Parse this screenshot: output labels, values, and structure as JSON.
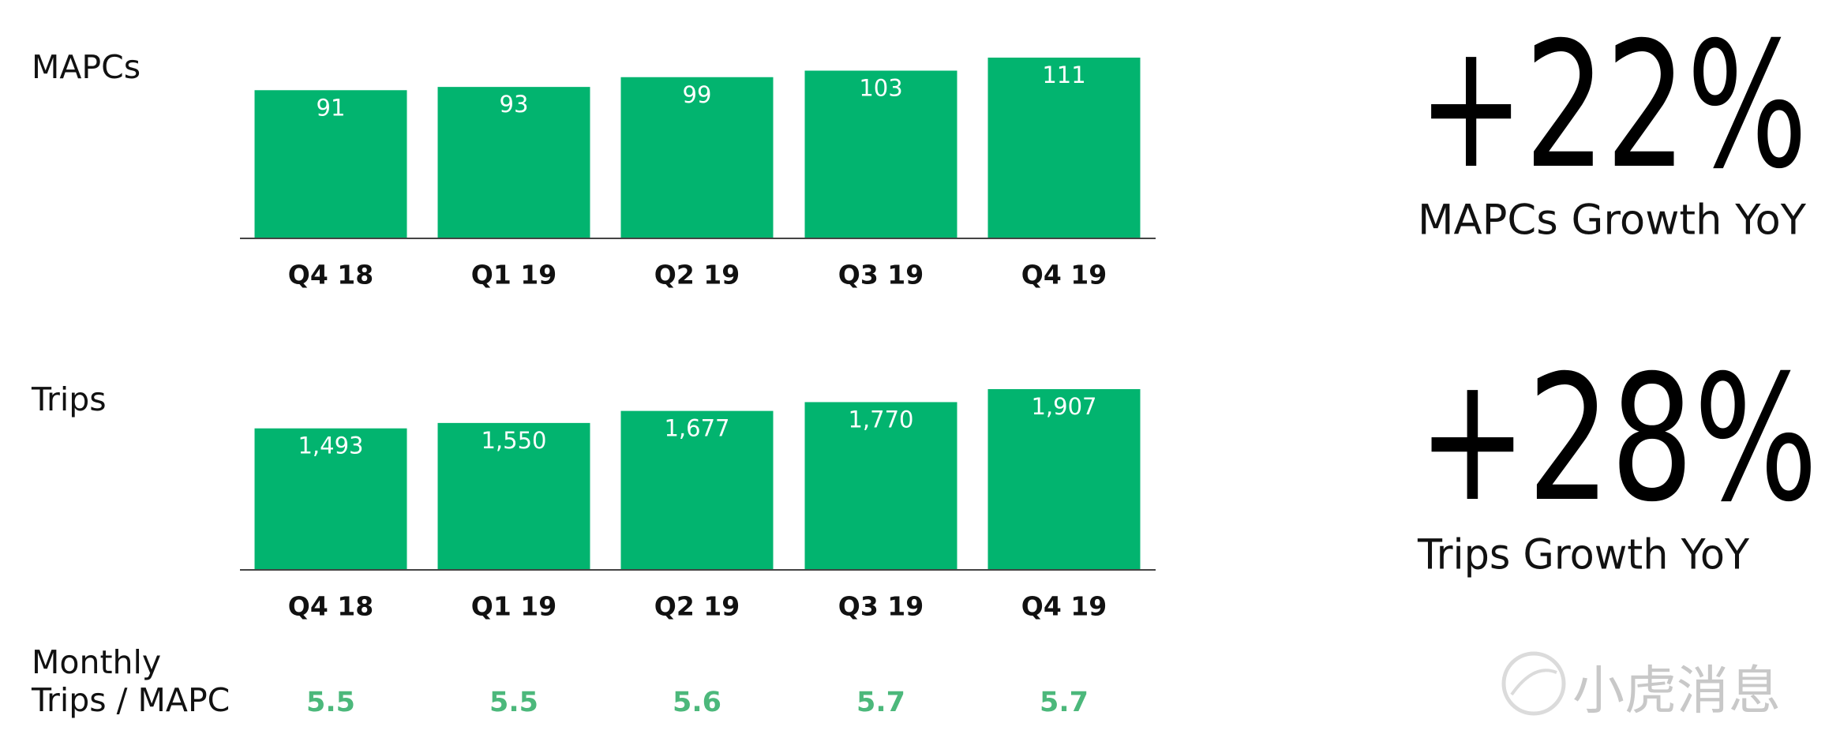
{
  "chart_data": [
    {
      "type": "bar",
      "title": "MAPCs",
      "categories": [
        "Q4 18",
        "Q1 19",
        "Q2 19",
        "Q3 19",
        "Q4 19"
      ],
      "values": [
        91,
        93,
        99,
        103,
        111
      ],
      "color": "#02b46f"
    },
    {
      "type": "bar",
      "title": "Trips",
      "categories": [
        "Q4 18",
        "Q1 19",
        "Q2 19",
        "Q3 19",
        "Q4 19"
      ],
      "values": [
        1493,
        1550,
        1677,
        1770,
        1907
      ],
      "value_labels": [
        "1,493",
        "1,550",
        "1,677",
        "1,770",
        "1,907"
      ],
      "color": "#02b46f"
    }
  ],
  "metrics": {
    "label_lines": [
      "Monthly",
      "Trips / MAPC"
    ],
    "values": [
      5.5,
      5.5,
      5.6,
      5.7,
      5.7
    ],
    "color": "#4cb87b"
  },
  "highlights": [
    {
      "value": "+22%",
      "caption": "MAPCs Growth YoY"
    },
    {
      "value": "+28%",
      "caption": "Trips Growth YoY"
    }
  ],
  "watermark": "小虎消息"
}
